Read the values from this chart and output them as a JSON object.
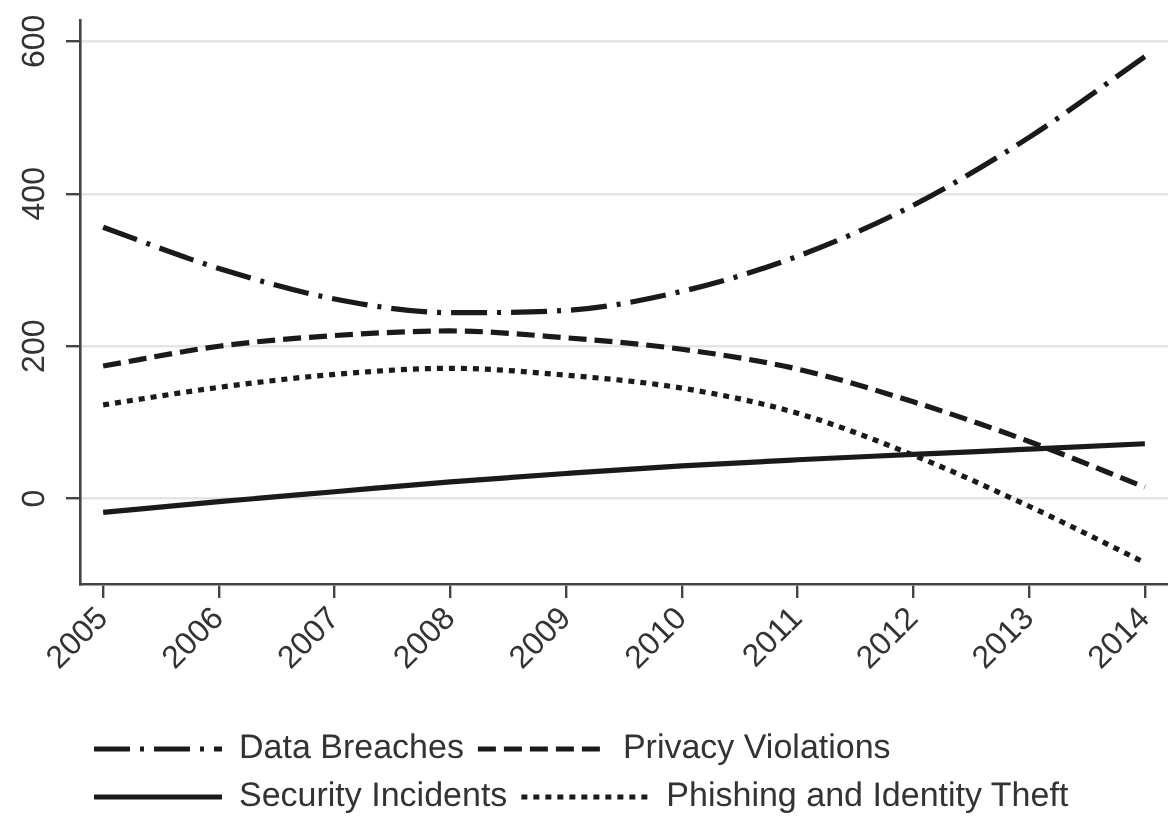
{
  "chart_data": {
    "type": "line",
    "x": [
      2005,
      2006,
      2007,
      2008,
      2009,
      2010,
      2011,
      2012,
      2013,
      2014
    ],
    "xlim": [
      2004.8,
      2014.2
    ],
    "xticks": [
      2005,
      2006,
      2007,
      2008,
      2009,
      2010,
      2011,
      2012,
      2013,
      2014
    ],
    "ylim": [
      -112,
      628
    ],
    "yticks": [
      0,
      200,
      400,
      600
    ],
    "grid": "y",
    "legend": "bottom",
    "series": [
      {
        "name": "Data Breaches",
        "color": "#1a1a1a",
        "line_style": "dashdot",
        "values": [
          356,
          302,
          262,
          244,
          247,
          272,
          318,
          385,
          474,
          580
        ]
      },
      {
        "name": "Privacy Violations",
        "color": "#1a1a1a",
        "line_style": "dashed",
        "values": [
          174,
          200,
          214,
          220,
          211,
          196,
          170,
          127,
          75,
          15
        ]
      },
      {
        "name": "Security Incidents",
        "color": "#1a1a1a",
        "line_style": "solid",
        "values": [
          -18,
          -4,
          9,
          22,
          33,
          43,
          51,
          58,
          65,
          72
        ]
      },
      {
        "name": "Phishing and Identity Theft",
        "color": "#1a1a1a",
        "line_style": "dotted",
        "values": [
          123,
          146,
          163,
          171,
          162,
          145,
          112,
          57,
          -10,
          -84
        ]
      }
    ]
  }
}
